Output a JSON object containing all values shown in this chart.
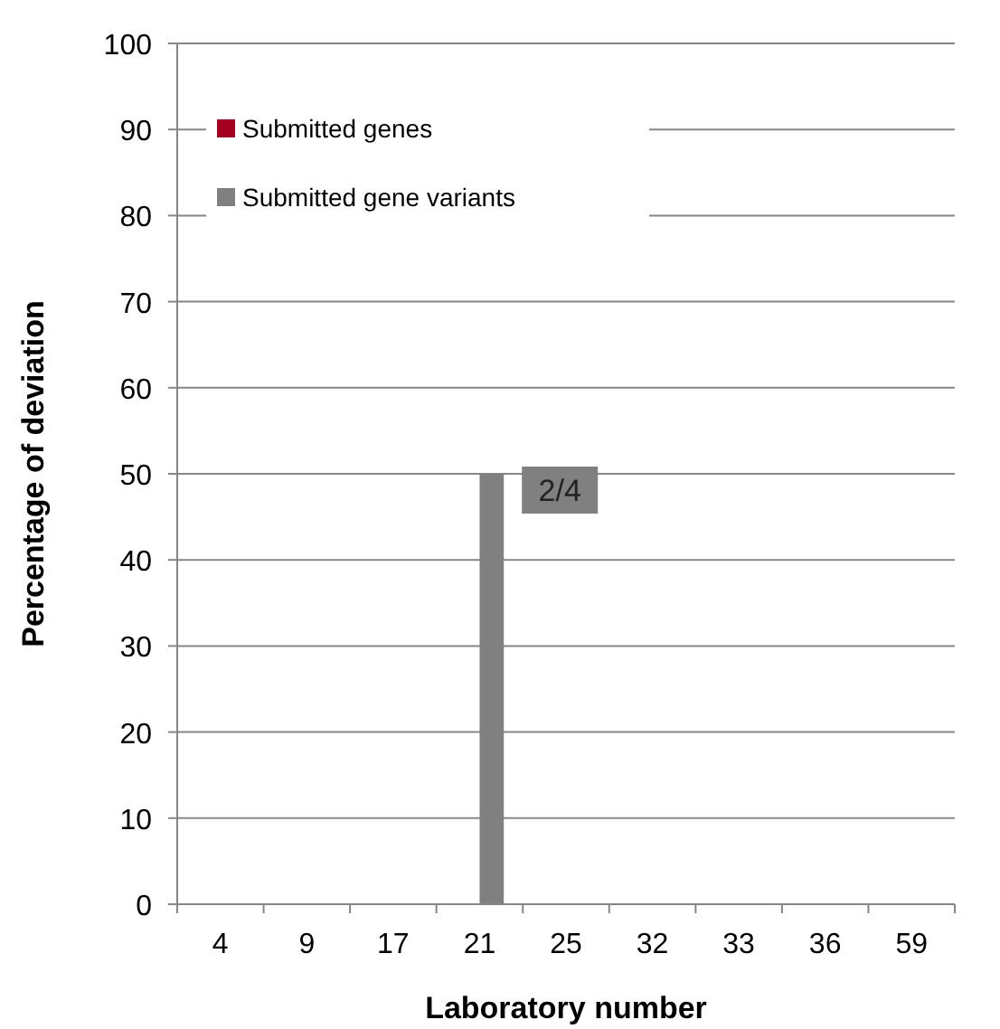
{
  "chart_data": {
    "type": "bar",
    "xlabel": "Laboratory number",
    "ylabel": "Percentage of deviation",
    "categories": [
      "4",
      "9",
      "17",
      "21",
      "25",
      "32",
      "33",
      "36",
      "59"
    ],
    "series": [
      {
        "name": "Submitted genes",
        "color": "#a50021",
        "values": [
          0,
          0,
          0,
          0,
          0,
          0,
          0,
          0,
          0
        ]
      },
      {
        "name": "Submitted gene variants",
        "color": "#808080",
        "values": [
          0,
          0,
          0,
          50,
          0,
          0,
          0,
          0,
          0
        ]
      }
    ],
    "annotations": [
      {
        "text": "2/4",
        "x": "21",
        "y": 50
      }
    ],
    "ylim": [
      0,
      100
    ],
    "yticks": [
      0,
      10,
      20,
      30,
      40,
      50,
      60,
      70,
      80,
      90,
      100
    ],
    "grid": "y",
    "legend": "top left"
  }
}
